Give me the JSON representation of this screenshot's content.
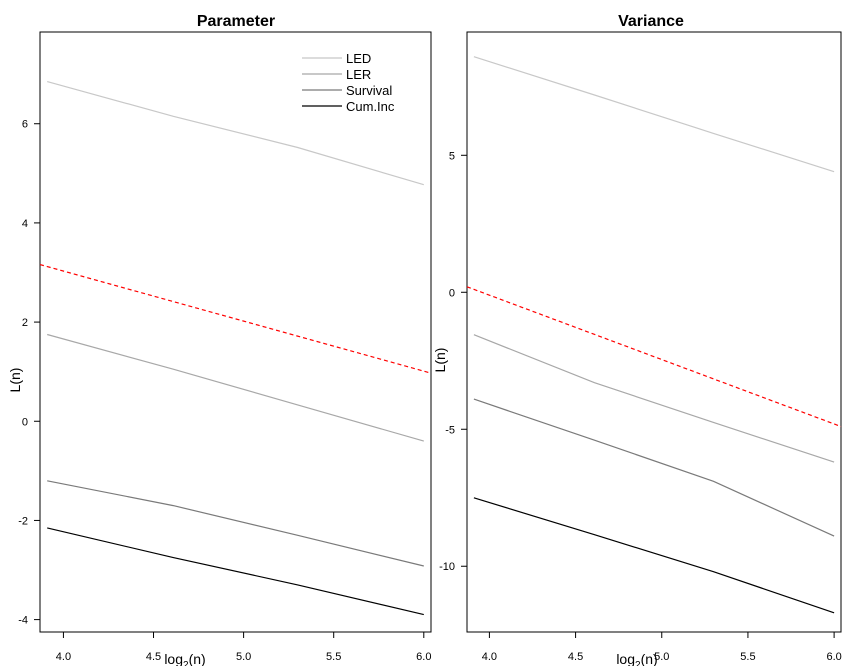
{
  "chart_data": [
    {
      "type": "line",
      "title": "Parameter",
      "xlabel": "log2(n)",
      "xlabel_base": "log",
      "xlabel_sub": "2",
      "xlabel_rest": "(n)",
      "ylabel": "L(n)",
      "xlim": [
        3.87,
        6.04
      ],
      "ylim": [
        -4.25,
        7.85
      ],
      "x_ticks": [
        4.0,
        4.5,
        5.0,
        5.5,
        6.0
      ],
      "x_tick_labels": [
        "4.0",
        "4.5",
        "5.0",
        "5.5",
        "6.0"
      ],
      "y_ticks": [
        -4,
        -2,
        0,
        2,
        4,
        6
      ],
      "y_tick_labels": [
        "-4",
        "-2",
        "0",
        "2",
        "4",
        "6"
      ],
      "grid": false,
      "legend_position": "top-right",
      "series": [
        {
          "name": "LED",
          "color": "#c8c8c8",
          "x": [
            3.91,
            4.61,
            5.3,
            6.0
          ],
          "y": [
            6.85,
            6.15,
            5.52,
            4.77
          ]
        },
        {
          "name": "LER",
          "color": "#a8a8a8",
          "x": [
            3.91,
            4.61,
            5.3,
            6.0
          ],
          "y": [
            1.75,
            1.05,
            0.33,
            -0.4
          ]
        },
        {
          "name": "Survival",
          "color": "#7a7a7a",
          "x": [
            3.91,
            4.61,
            5.3,
            6.0
          ],
          "y": [
            -1.2,
            -1.7,
            -2.3,
            -2.92
          ]
        },
        {
          "name": "Cum.Inc",
          "color": "#000000",
          "x": [
            3.91,
            4.61,
            5.3,
            6.0
          ],
          "y": [
            -2.15,
            -2.75,
            -3.3,
            -3.9
          ]
        }
      ],
      "reference_line": {
        "color": "#ff0000",
        "style": "dashed",
        "x": [
          3.87,
          6.04
        ],
        "y": [
          3.16,
          0.97
        ]
      }
    },
    {
      "type": "line",
      "title": "Variance",
      "xlabel": "log2(n)",
      "xlabel_base": "log",
      "xlabel_sub": "2",
      "xlabel_rest": "(n)",
      "ylabel": "L(n)",
      "xlim": [
        3.87,
        6.04
      ],
      "ylim": [
        -12.4,
        9.5
      ],
      "x_ticks": [
        4.0,
        4.5,
        5.0,
        5.5,
        6.0
      ],
      "x_tick_labels": [
        "4.0",
        "4.5",
        "5.0",
        "5.5",
        "6.0"
      ],
      "y_ticks": [
        -10,
        -5,
        0,
        5
      ],
      "y_tick_labels": [
        "-10",
        "-5",
        "0",
        "5"
      ],
      "grid": false,
      "series": [
        {
          "name": "LED",
          "color": "#c8c8c8",
          "x": [
            3.91,
            4.61,
            5.3,
            6.0
          ],
          "y": [
            8.6,
            7.2,
            5.8,
            4.4
          ]
        },
        {
          "name": "LER",
          "color": "#a8a8a8",
          "x": [
            3.91,
            4.61,
            5.3,
            6.0
          ],
          "y": [
            -1.55,
            -3.3,
            -4.75,
            -6.2
          ]
        },
        {
          "name": "Survival",
          "color": "#7a7a7a",
          "x": [
            3.91,
            4.61,
            5.3,
            6.0
          ],
          "y": [
            -3.9,
            -5.4,
            -6.9,
            -8.9
          ]
        },
        {
          "name": "Cum.Inc",
          "color": "#000000",
          "x": [
            3.91,
            4.61,
            5.3,
            6.0
          ],
          "y": [
            -7.5,
            -8.85,
            -10.2,
            -11.7
          ]
        }
      ],
      "reference_line": {
        "color": "#ff0000",
        "style": "dashed",
        "x": [
          3.87,
          6.04
        ],
        "y": [
          0.2,
          -4.9
        ]
      }
    }
  ]
}
